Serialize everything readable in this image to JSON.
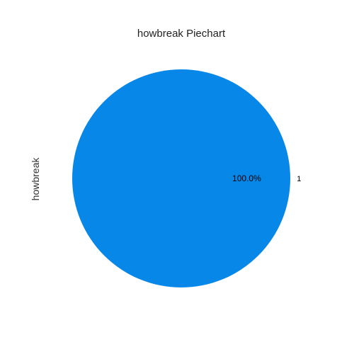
{
  "chart_data": {
    "type": "pie",
    "title": "howbreak Piechart",
    "ylabel": "howbreak",
    "categories": [
      "1"
    ],
    "values": [
      100.0
    ],
    "percent_labels": [
      "100.0%"
    ],
    "colors": [
      "#0787e8"
    ],
    "legend": false
  }
}
